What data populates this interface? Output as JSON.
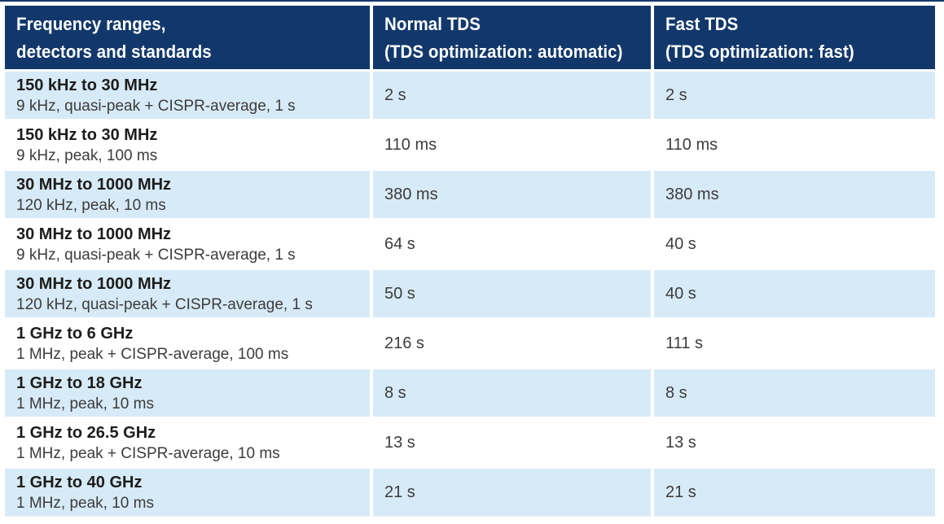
{
  "colors": {
    "top_rule": "#12386B",
    "header_bg": "#12386B",
    "header_text": "#FFFFFF",
    "row_alt_bg": "#D7EAF7",
    "row_bg": "#FFFFFF",
    "range_text": "#1D1D1B",
    "detail_text": "#3C3C3B",
    "value_text": "#3C3C3B"
  },
  "table": {
    "header": {
      "col1": {
        "line1": "Frequency ranges,",
        "line2": "detectors and standards"
      },
      "col2": {
        "line1": "Normal TDS",
        "line2": "(TDS optimization: automatic)"
      },
      "col3": {
        "line1": "Fast TDS",
        "line2": "(TDS optimization: fast)"
      }
    },
    "rows": [
      {
        "range": "150 kHz to 30 MHz",
        "detail": "9 kHz, quasi-peak + CISPR-average, 1 s",
        "normal": "2 s",
        "fast": "2 s"
      },
      {
        "range": "150 kHz to 30 MHz",
        "detail": "9 kHz, peak, 100 ms",
        "normal": "110 ms",
        "fast": "110 ms"
      },
      {
        "range": "30 MHz to 1000 MHz",
        "detail": "120 kHz, peak, 10 ms",
        "normal": "380 ms",
        "fast": "380 ms"
      },
      {
        "range": "30 MHz to 1000 MHz",
        "detail": "9 kHz, quasi-peak + CISPR-average, 1 s",
        "normal": "64 s",
        "fast": "40 s"
      },
      {
        "range": "30 MHz to 1000 MHz",
        "detail": "120 kHz, quasi-peak + CISPR-average, 1 s",
        "normal": "50 s",
        "fast": "40 s"
      },
      {
        "range": "1 GHz to 6 GHz",
        "detail": "1 MHz, peak + CISPR-average, 100 ms",
        "normal": "216 s",
        "fast": "111 s"
      },
      {
        "range": "1 GHz to 18 GHz",
        "detail": "1 MHz, peak, 10 ms",
        "normal": "8 s",
        "fast": "8 s"
      },
      {
        "range": "1 GHz to 26.5 GHz",
        "detail": "1 MHz, peak + CISPR-average, 10 ms",
        "normal": "13 s",
        "fast": "13 s"
      },
      {
        "range": "1 GHz to 40 GHz",
        "detail": "1 MHz, peak, 10 ms",
        "normal": "21 s",
        "fast": "21 s"
      }
    ]
  }
}
